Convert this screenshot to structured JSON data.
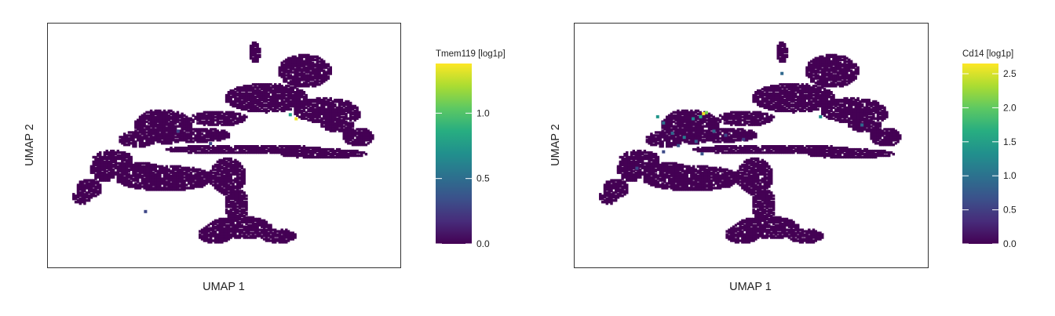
{
  "chart_data": [
    {
      "type": "scatter",
      "title": "",
      "xlabel": "UMAP 1",
      "ylabel": "UMAP 2",
      "colorbar": {
        "label": "Tmem119 [log1p]",
        "range": [
          0,
          1.38
        ],
        "ticks": [
          0.0,
          0.5,
          1.0
        ],
        "tick_labels": [
          "0.0",
          "0.5",
          "1.0"
        ],
        "colormap": "viridis"
      },
      "points": {
        "base_value": 0.0,
        "highlights": [
          {
            "x": 7.9,
            "y": 6.6,
            "v": 1.35
          },
          {
            "x": 7.7,
            "y": 6.8,
            "v": 0.8
          },
          {
            "x": 3.9,
            "y": 6.0,
            "v": 0.3
          },
          {
            "x": 2.8,
            "y": 2.1,
            "v": 0.3
          },
          {
            "x": 5.0,
            "y": 5.4,
            "v": 0.3
          }
        ]
      },
      "grid": false
    },
    {
      "type": "scatter",
      "title": "",
      "xlabel": "UMAP 1",
      "ylabel": "UMAP 2",
      "colorbar": {
        "label": "Cd14 [log1p]",
        "range": [
          0,
          2.65
        ],
        "ticks": [
          0.0,
          0.5,
          1.0,
          1.5,
          2.0,
          2.5
        ],
        "tick_labels": [
          "0.0",
          "0.5",
          "1.0",
          "1.5",
          "2.0",
          "2.5"
        ],
        "colormap": "viridis"
      },
      "points": {
        "base_value": 0.0,
        "highlights": [
          {
            "x": 3.85,
            "y": 6.85,
            "v": 2.6
          },
          {
            "x": 3.95,
            "y": 6.9,
            "v": 2.1
          },
          {
            "x": 3.75,
            "y": 6.7,
            "v": 1.6
          },
          {
            "x": 3.5,
            "y": 6.6,
            "v": 1.2
          },
          {
            "x": 2.3,
            "y": 6.7,
            "v": 1.4
          },
          {
            "x": 2.5,
            "y": 6.4,
            "v": 1.0
          },
          {
            "x": 2.8,
            "y": 5.9,
            "v": 0.9
          },
          {
            "x": 3.2,
            "y": 5.7,
            "v": 1.1
          },
          {
            "x": 3.6,
            "y": 5.5,
            "v": 0.8
          },
          {
            "x": 3.0,
            "y": 5.3,
            "v": 0.7
          },
          {
            "x": 4.2,
            "y": 6.0,
            "v": 0.9
          },
          {
            "x": 4.6,
            "y": 5.8,
            "v": 0.6
          },
          {
            "x": 2.5,
            "y": 5.0,
            "v": 0.6
          },
          {
            "x": 3.8,
            "y": 4.9,
            "v": 0.7
          },
          {
            "x": 6.5,
            "y": 8.8,
            "v": 0.9
          },
          {
            "x": 7.8,
            "y": 6.7,
            "v": 1.3
          },
          {
            "x": 9.2,
            "y": 6.3,
            "v": 0.9
          },
          {
            "x": 5.2,
            "y": 5.6,
            "v": 0.5
          },
          {
            "x": 1.6,
            "y": 4.2,
            "v": 0.6
          }
        ]
      },
      "grid": false
    }
  ]
}
